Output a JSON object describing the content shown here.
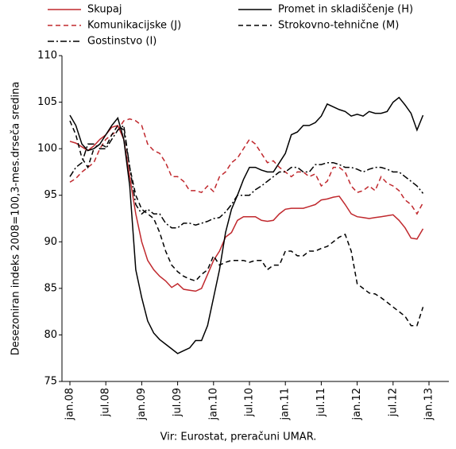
{
  "chart_data": {
    "type": "line",
    "y_axis_label": "Desezoniran indeks 2008=100,3-mes.drseča sredina",
    "source": "Vir: Eurostat, preračuni UMAR.",
    "categories": [
      "jan.08",
      null,
      null,
      null,
      null,
      null,
      "jul.08",
      null,
      null,
      null,
      null,
      null,
      "jan.09",
      null,
      null,
      null,
      null,
      null,
      "jul.09",
      null,
      null,
      null,
      null,
      null,
      "jan.10",
      null,
      null,
      null,
      null,
      null,
      "jul.10",
      null,
      null,
      null,
      null,
      null,
      "jan.11",
      null,
      null,
      null,
      null,
      null,
      "jul.11",
      null,
      null,
      null,
      null,
      null,
      "jan.12",
      null,
      null,
      null,
      null,
      null,
      "jul.12",
      null,
      null,
      null,
      null,
      null,
      "jan.13"
    ],
    "ylim": [
      75,
      110
    ],
    "yticks": [
      75,
      80,
      85,
      90,
      95,
      100,
      105,
      110
    ],
    "series": [
      {
        "name": "Skupaj",
        "color": "#c0282d",
        "style": "solid",
        "values": [
          100.8,
          100.6,
          100.2,
          99.8,
          100.3,
          101,
          101.5,
          102.3,
          102.5,
          101,
          97,
          93,
          90,
          88,
          87,
          86.3,
          85.8,
          85.1,
          85.5,
          84.9,
          84.8,
          84.7,
          85,
          86.5,
          88,
          89,
          90.5,
          91,
          92.3,
          92.7,
          92.7,
          92.7,
          92.3,
          92.2,
          92.3,
          93,
          93.5,
          93.6,
          93.6,
          93.6,
          93.8,
          94,
          94.5,
          94.6,
          94.8,
          94.9,
          94,
          93,
          92.7,
          92.6,
          92.5,
          92.6,
          92.7,
          92.8,
          92.9,
          92.3,
          91.5,
          90.4,
          90.3,
          91.4,
          null
        ]
      },
      {
        "name": "Promet in skladiščenje (H)",
        "color": "#000000",
        "style": "solid",
        "values": [
          103.6,
          102.5,
          100.5,
          99.8,
          100,
          100.5,
          101.5,
          102.5,
          103.3,
          101,
          96,
          87,
          84,
          81.5,
          80.2,
          79.5,
          79,
          78.5,
          78,
          78.3,
          78.6,
          79.4,
          79.4,
          81,
          84,
          87,
          91,
          93.5,
          95,
          96.7,
          98,
          98,
          97.7,
          97.5,
          97.5,
          98.5,
          99.5,
          101.5,
          101.8,
          102.5,
          102.5,
          102.8,
          103.5,
          104.8,
          104.5,
          104.2,
          104,
          103.5,
          103.7,
          103.5,
          104,
          103.8,
          103.8,
          104,
          105,
          105.5,
          104.7,
          103.8,
          102,
          103.6,
          null
        ]
      },
      {
        "name": "Komunikacijske (J)",
        "color": "#c0282d",
        "style": "dashed",
        "values": [
          96.4,
          96.8,
          97.5,
          98,
          98.5,
          100,
          101,
          101.5,
          102,
          103,
          103.2,
          103,
          102.5,
          100.5,
          99.8,
          99.5,
          98.5,
          97,
          97,
          96.5,
          95.5,
          95.5,
          95.3,
          96,
          95.4,
          97,
          97.5,
          98.5,
          99,
          100,
          101,
          100.5,
          99.5,
          98.5,
          98.7,
          98,
          97.5,
          97,
          97.5,
          97.5,
          97,
          97.3,
          96,
          96.5,
          98,
          98,
          97.5,
          96,
          95.3,
          95.5,
          96,
          95.5,
          97,
          96.3,
          96,
          95.5,
          94.5,
          94,
          93,
          94.2,
          null
        ]
      },
      {
        "name": "Strokovno-tehnične (M)",
        "color": "#000000",
        "style": "dashed",
        "values": [
          103,
          101.5,
          99,
          98,
          100,
          100.5,
          100.2,
          101.5,
          102.5,
          102,
          98,
          95,
          93.5,
          93,
          92.5,
          91,
          89,
          87.5,
          86.8,
          86.3,
          86,
          85.8,
          86.5,
          87,
          88.5,
          87.5,
          87.8,
          88,
          88,
          88,
          87.8,
          88,
          88,
          87,
          87.5,
          87.5,
          89,
          89,
          88.5,
          88.5,
          89,
          89,
          89.3,
          89.5,
          90,
          90.5,
          90.8,
          89,
          85.5,
          85,
          84.5,
          84.4,
          84,
          83.5,
          83,
          82.5,
          82,
          81,
          81,
          83,
          null
        ]
      },
      {
        "name": "Gostinstvo (I)",
        "color": "#000000",
        "style": "dashdot",
        "values": [
          97,
          98,
          98.5,
          100.5,
          100.5,
          100,
          100,
          101,
          102,
          102.5,
          98,
          94,
          93,
          93.5,
          93,
          93,
          92,
          91.5,
          91.5,
          92,
          92,
          91.8,
          92,
          92.2,
          92.5,
          92.6,
          93.2,
          94,
          95,
          95,
          95,
          95.6,
          96,
          96.5,
          97,
          97.5,
          97.5,
          98,
          98,
          97.5,
          97.5,
          98.3,
          98.3,
          98.5,
          98.5,
          98.3,
          98,
          98,
          97.8,
          97.5,
          97.8,
          98,
          98,
          97.8,
          97.5,
          97.5,
          97,
          96.5,
          96,
          95.2,
          null
        ]
      }
    ]
  }
}
